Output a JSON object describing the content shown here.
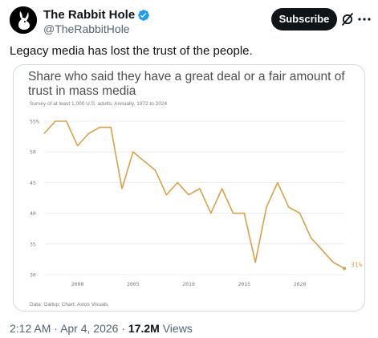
{
  "header": {
    "display_name": "The Rabbit Hole",
    "handle": "@TheRabbitHole",
    "subscribe_label": "Subscribe",
    "verified_color": "#1d9bf0"
  },
  "icons": {
    "avatar": "rabbit-logo-icon",
    "verified": "verified-badge-icon",
    "grok": "grok-icon",
    "more": "more-dots-icon"
  },
  "tweet": {
    "text": "Legacy media has lost the trust of the people."
  },
  "meta": {
    "time": "2:12 AM",
    "separator": "·",
    "date": "Apr 4, 2026",
    "views_count": "17.2M",
    "views_label": "Views"
  },
  "chart_data": {
    "type": "line",
    "title": "Share who said they have a great deal or a fair amount of trust in mass media",
    "subtitle": "Survey of at least 1,000 U.S. adults; Annually, 1972 to 2024",
    "source": "Data: Gallup; Chart: Axios Visuals",
    "line_color": "#d9a04a",
    "grid": true,
    "xlim": [
      1997,
      2024
    ],
    "ylim": [
      30,
      55
    ],
    "x_ticks": [
      2000,
      2005,
      2010,
      2015,
      2020
    ],
    "x_tick_labels": [
      "2000",
      "2005",
      "2010",
      "2015",
      "2020"
    ],
    "y_ticks": [
      30,
      35,
      40,
      45,
      50,
      55
    ],
    "y_tick_labels": [
      "30",
      "35",
      "40",
      "45",
      "50",
      "55%"
    ],
    "end_label": "31%",
    "x": [
      1997,
      1998,
      1999,
      2000,
      2001,
      2002,
      2003,
      2004,
      2005,
      2006,
      2007,
      2008,
      2009,
      2010,
      2011,
      2012,
      2013,
      2014,
      2015,
      2016,
      2017,
      2018,
      2019,
      2020,
      2021,
      2022,
      2023,
      2024
    ],
    "values": [
      53,
      55,
      55,
      51,
      53,
      54,
      54,
      44,
      50,
      48.5,
      47,
      43,
      45,
      43,
      44,
      40,
      44,
      40,
      40,
      32,
      41,
      45,
      41,
      40,
      36,
      34,
      32,
      31
    ]
  }
}
